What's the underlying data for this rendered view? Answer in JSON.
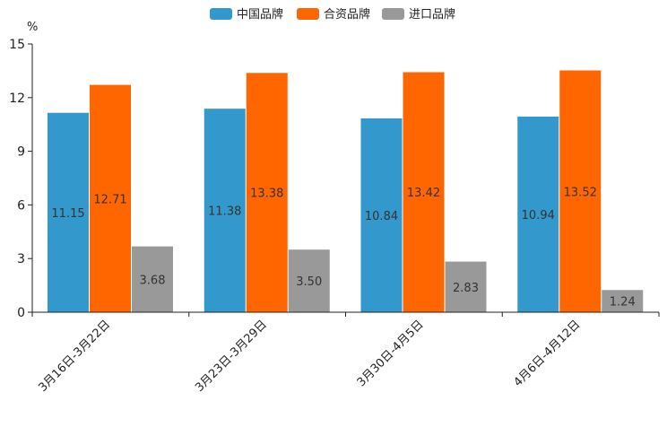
{
  "chart_data": {
    "type": "bar",
    "title": "",
    "xlabel": "",
    "ylabel": "%",
    "ylim": [
      0,
      15
    ],
    "yticks": [
      0,
      3,
      6,
      9,
      12,
      15
    ],
    "grid": false,
    "legend_position": "top-center",
    "categories": [
      "3月16日-3月22日",
      "3月23日-3月29日",
      "3月30日-4月5日",
      "4月6日-4月12日"
    ],
    "series": [
      {
        "name": "中国品牌",
        "color": "#3399cc",
        "values": [
          11.15,
          11.38,
          10.84,
          10.94
        ]
      },
      {
        "name": "合资品牌",
        "color": "#ff6600",
        "values": [
          12.71,
          13.38,
          13.42,
          13.52
        ]
      },
      {
        "name": "进口品牌",
        "color": "#999999",
        "values": [
          3.68,
          3.5,
          2.83,
          1.24
        ]
      }
    ]
  }
}
